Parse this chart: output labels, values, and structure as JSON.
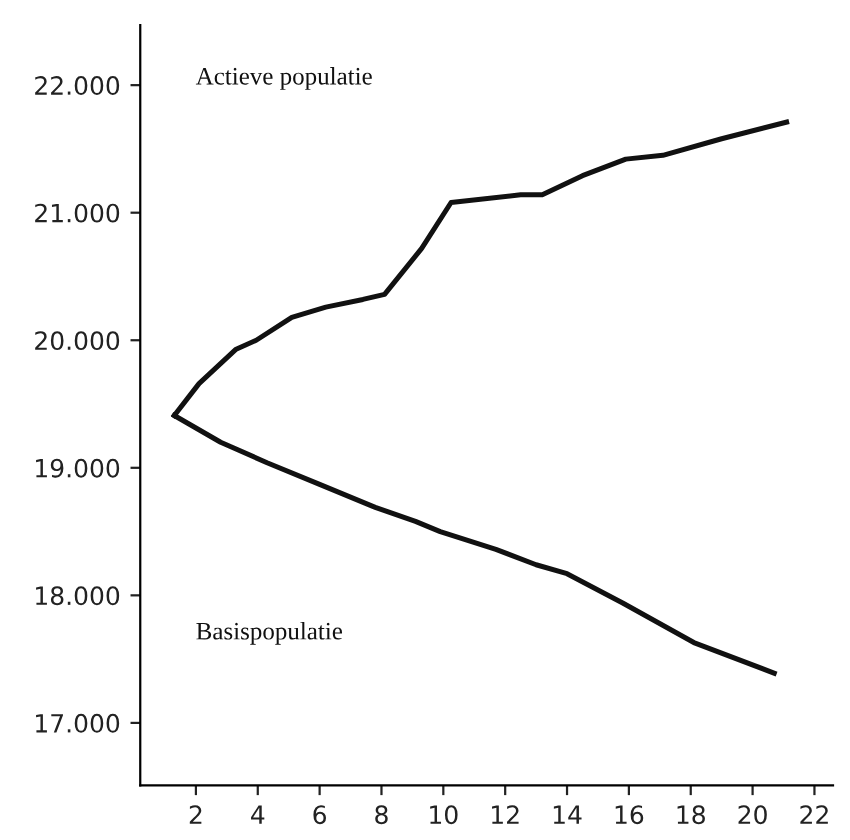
{
  "chart_data": {
    "type": "line",
    "xlim": [
      0.2,
      22.6
    ],
    "ylim": [
      16510,
      22470
    ],
    "xticks": [
      2,
      4,
      6,
      8,
      10,
      12,
      14,
      16,
      18,
      20,
      22
    ],
    "yticks": [
      {
        "value": 17000,
        "label": "17.000"
      },
      {
        "value": 18000,
        "label": "18.000"
      },
      {
        "value": 19000,
        "label": "19.000"
      },
      {
        "value": 20000,
        "label": "20.000"
      },
      {
        "value": 21000,
        "label": "21.000"
      },
      {
        "value": 22000,
        "label": "22.000"
      }
    ],
    "annotations": [
      "Actieve populatie",
      "Basispopulatie"
    ],
    "grid": false,
    "legend": false,
    "marker": "none",
    "line_style": "solid",
    "series": [
      {
        "color": "#111111",
        "x": [
          1.3,
          2.1,
          3.3,
          3.95,
          5.1,
          6.2,
          7.4,
          8.1,
          9.3,
          10.25,
          12.5,
          13.2,
          14.5,
          15.9,
          17.1,
          19.0,
          21.1
        ],
        "values": [
          19410,
          19660,
          19930,
          20000,
          20180,
          20260,
          20320,
          20360,
          20720,
          21080,
          21140,
          21140,
          21290,
          21420,
          21450,
          21580,
          21710
        ]
      },
      {
        "color": "#111111",
        "x": [
          1.3,
          2.8,
          4.3,
          6.0,
          7.8,
          9.1,
          9.9,
          11.7,
          13.0,
          14.0,
          15.8,
          18.1,
          20.7
        ],
        "values": [
          19410,
          19200,
          19040,
          18870,
          18690,
          18580,
          18500,
          18360,
          18240,
          18170,
          17940,
          17630,
          17390
        ]
      }
    ]
  }
}
